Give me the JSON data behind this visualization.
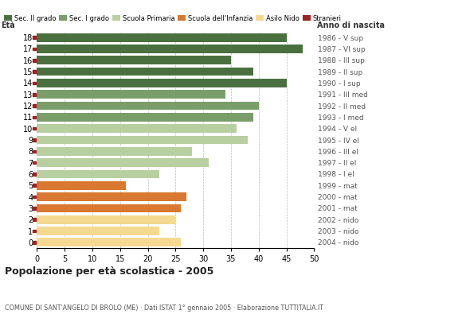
{
  "ages": [
    18,
    17,
    16,
    15,
    14,
    13,
    12,
    11,
    10,
    9,
    8,
    7,
    6,
    5,
    4,
    3,
    2,
    1,
    0
  ],
  "values": [
    45,
    48,
    35,
    39,
    45,
    34,
    40,
    39,
    36,
    38,
    28,
    31,
    22,
    16,
    27,
    26,
    25,
    22,
    26
  ],
  "years_by_age": {
    "18": "1986 - V sup",
    "17": "1987 - VI sup",
    "16": "1988 - III sup",
    "15": "1989 - II sup",
    "14": "1990 - I sup",
    "13": "1991 - III med",
    "12": "1992 - II med",
    "11": "1993 - I med",
    "10": "1994 - V el",
    "9": "1995 - IV el",
    "8": "1996 - III el",
    "7": "1997 - II el",
    "6": "1998 - I el",
    "5": "1999 - mat",
    "4": "2000 - mat",
    "3": "2001 - mat",
    "2": "2002 - nido",
    "1": "2003 - nido",
    "0": "2004 - nido"
  },
  "bar_colors": [
    "#4a7040",
    "#4a7040",
    "#4a7040",
    "#4a7040",
    "#4a7040",
    "#7a9e6a",
    "#7a9e6a",
    "#7a9e6a",
    "#b8cfa0",
    "#b8cfa0",
    "#b8cfa0",
    "#b8cfa0",
    "#b8cfa0",
    "#d97830",
    "#d97830",
    "#d97830",
    "#f5d990",
    "#f5d990",
    "#f5d990"
  ],
  "stranieri_color": "#a02020",
  "legend_labels": [
    "Sec. II grado",
    "Sec. I grado",
    "Scuola Primaria",
    "Scuola dell'Infanzia",
    "Asilo Nido",
    "Stranieri"
  ],
  "legend_colors": [
    "#4a7040",
    "#7a9e6a",
    "#b8cfa0",
    "#d97830",
    "#f5d990",
    "#a02020"
  ],
  "title": "Popolazione per età scolastica - 2005",
  "subtitle": "COMUNE DI SANT'ANGELO DI BROLO (ME) · Dati ISTAT 1° gennaio 2005 · Elaborazione TUTTITALIA.IT",
  "eta_label": "Età",
  "anno_label": "Anno di nascita",
  "xlim": [
    0,
    50
  ],
  "background_color": "#ffffff",
  "grid_color": "#bbbbbb",
  "bar_height": 0.75
}
